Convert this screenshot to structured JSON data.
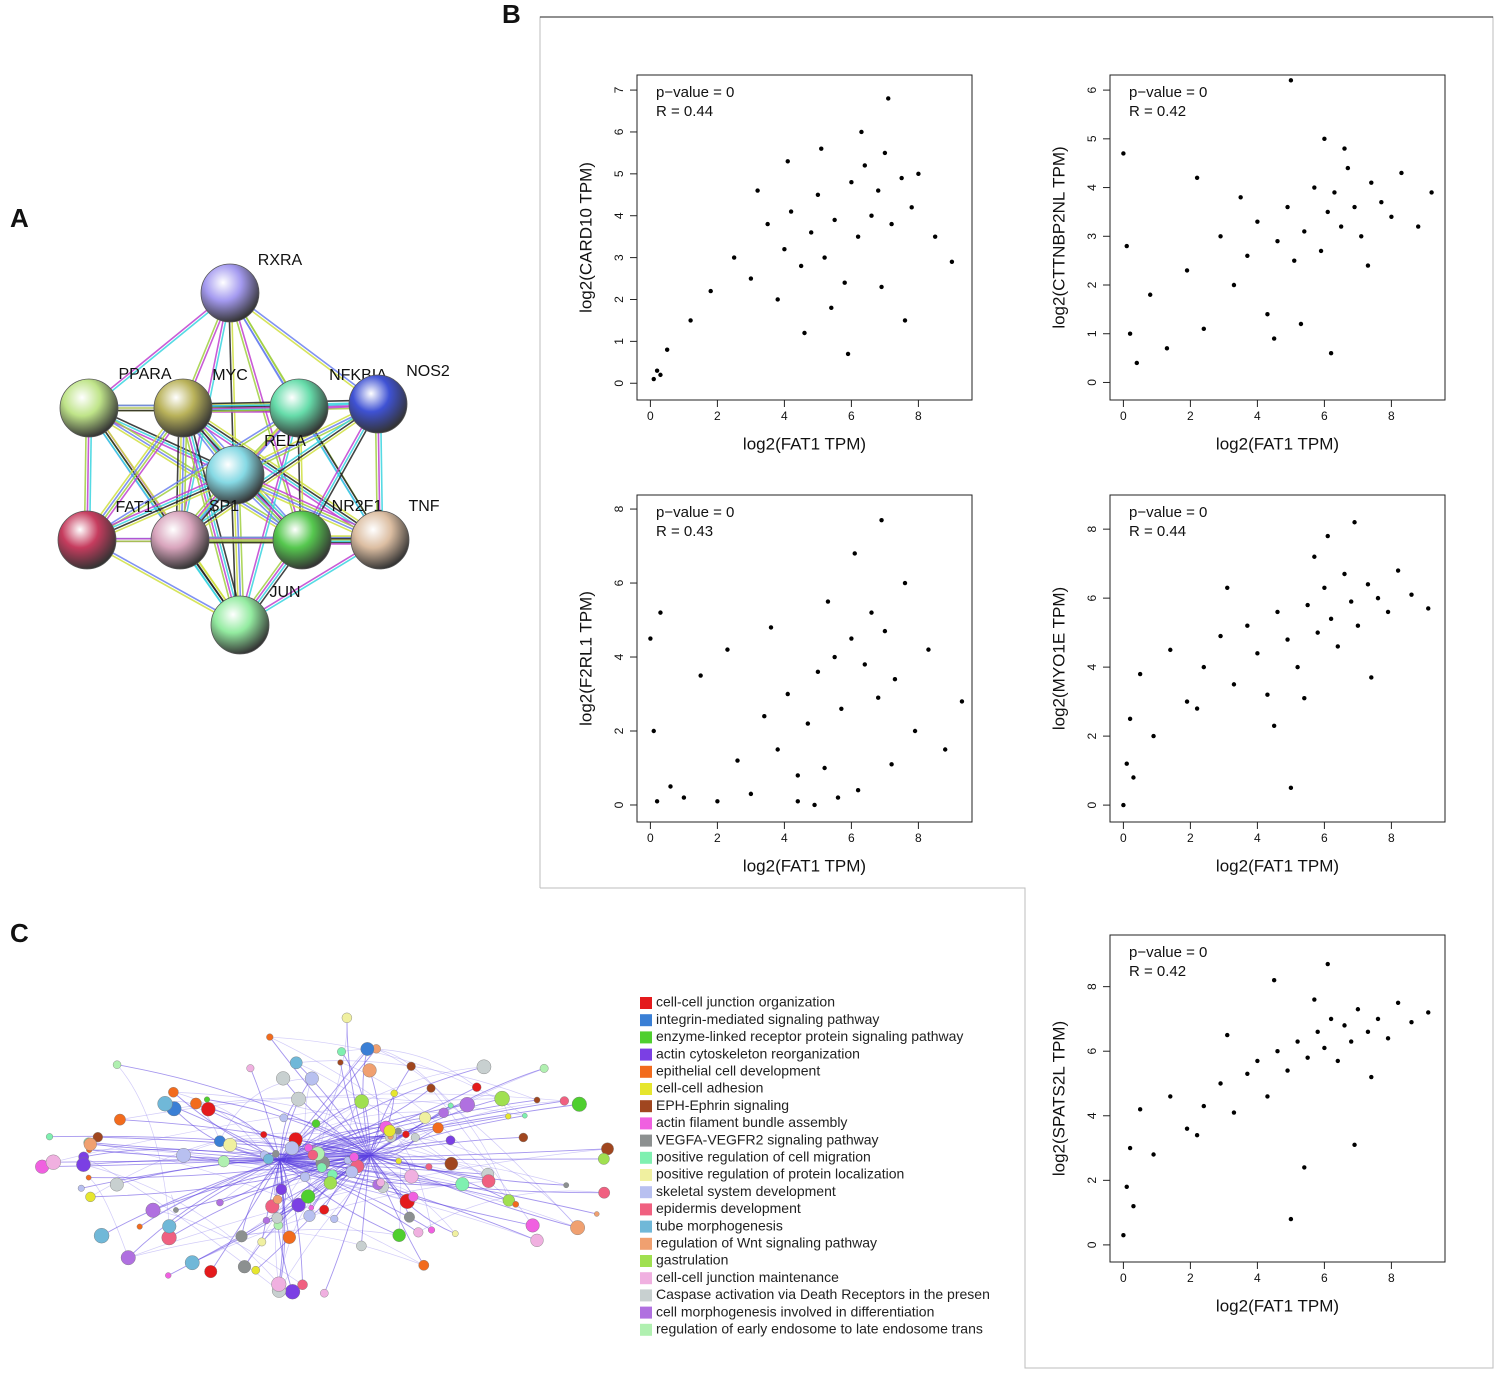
{
  "panel_labels": [
    "A",
    "B",
    "C"
  ],
  "network": {
    "nodes": [
      {
        "label": "RXRA",
        "color": "#a49af0"
      },
      {
        "label": "PPARA",
        "color": "#bfe489"
      },
      {
        "label": "MYC",
        "color": "#b9b25a"
      },
      {
        "label": "NFKBIA",
        "color": "#66dcaa"
      },
      {
        "label": "NOS2",
        "color": "#3f52d4"
      },
      {
        "label": "RELA",
        "color": "#86d9e4"
      },
      {
        "label": "FAT1",
        "color": "#c63c5e"
      },
      {
        "label": "SP1",
        "color": "#d9a5bd"
      },
      {
        "label": "NR2F1",
        "color": "#56c84f"
      },
      {
        "label": "TNF",
        "color": "#dcbea2"
      },
      {
        "label": "JUN",
        "color": "#93eba0"
      }
    ]
  },
  "legend": [
    {
      "label": "cell-cell junction organization",
      "color": "#e41a1c"
    },
    {
      "label": "integrin-mediated signaling pathway",
      "color": "#3a7fd5"
    },
    {
      "label": "enzyme-linked receptor protein signaling pathway",
      "color": "#4fcf2f"
    },
    {
      "label": "actin cytoskeleton reorganization",
      "color": "#7b3fe4"
    },
    {
      "label": "epithelial cell development",
      "color": "#f26b1d"
    },
    {
      "label": "cell-cell adhesion",
      "color": "#e6e62e"
    },
    {
      "label": "EPH-Ephrin signaling",
      "color": "#a0461f"
    },
    {
      "label": "actin filament bundle assembly",
      "color": "#f060e0"
    },
    {
      "label": "VEGFA-VEGFR2 signaling pathway",
      "color": "#8c9090"
    },
    {
      "label": "positive regulation of cell migration",
      "color": "#7ff0b0"
    },
    {
      "label": "positive regulation of protein localization",
      "color": "#f0f0a0"
    },
    {
      "label": "skeletal system development",
      "color": "#b8c0f0"
    },
    {
      "label": "epidermis development",
      "color": "#f06080"
    },
    {
      "label": "tube morphogenesis",
      "color": "#70b8d8"
    },
    {
      "label": "regulation of Wnt signaling pathway",
      "color": "#f0a070"
    },
    {
      "label": "gastrulation",
      "color": "#a0e050"
    },
    {
      "label": "cell-cell junction maintenance",
      "color": "#f0b0e0"
    },
    {
      "label": "Caspase activation via Death Receptors in the presen",
      "color": "#c8d0d0"
    },
    {
      "label": "cell morphogenesis involved in differentiation",
      "color": "#b070e0"
    },
    {
      "label": "regulation of early endosome to late endosome trans",
      "color": "#b0f0b0"
    }
  ],
  "chart_data": [
    {
      "type": "scatter",
      "annotations": [
        "p−value = 0",
        "R = 0.44"
      ],
      "xlabel": "log2(FAT1 TPM)",
      "ylabel": "log2(CARD10 TPM)",
      "color": "#000000",
      "x": [
        0.1,
        0.2,
        0.3,
        0.5,
        1.2,
        1.8,
        2.5,
        3.0,
        3.5,
        3.8,
        4.0,
        4.2,
        4.5,
        4.8,
        5.0,
        5.2,
        5.5,
        5.8,
        6.0,
        6.2,
        6.4,
        6.6,
        6.8,
        7.0,
        7.2,
        7.5,
        7.8,
        8.0,
        8.5,
        9.0,
        4.6,
        5.4,
        6.3,
        7.1,
        3.2,
        5.9,
        6.9,
        4.1,
        5.1,
        7.6
      ],
      "y": [
        0.1,
        0.3,
        0.2,
        0.8,
        1.5,
        2.2,
        3.0,
        2.5,
        3.8,
        2.0,
        3.2,
        4.1,
        2.8,
        3.6,
        4.5,
        3.0,
        3.9,
        2.4,
        4.8,
        3.5,
        5.2,
        4.0,
        4.6,
        5.5,
        3.8,
        4.9,
        4.2,
        5.0,
        3.5,
        2.9,
        1.2,
        1.8,
        6.0,
        6.8,
        4.6,
        0.7,
        2.3,
        5.3,
        5.6,
        1.5
      ],
      "xlim": [
        -0.4,
        9.6
      ],
      "ylim": [
        -0.4,
        7.36
      ],
      "xticks": [
        0,
        2,
        4,
        6,
        8
      ],
      "yticks": [
        0,
        1,
        2,
        3,
        4,
        5,
        6,
        7
      ]
    },
    {
      "type": "scatter",
      "annotations": [
        "p−value = 0",
        "R = 0.42"
      ],
      "xlabel": "log2(FAT1 TPM)",
      "ylabel": "log2(CTTNBP2NL TPM)",
      "color": "#000000",
      "x": [
        0.0,
        0.1,
        0.2,
        0.4,
        0.8,
        1.3,
        1.9,
        2.4,
        2.9,
        3.3,
        3.7,
        4.0,
        4.3,
        4.6,
        4.9,
        5.1,
        5.4,
        5.7,
        5.9,
        6.1,
        6.3,
        6.5,
        6.7,
        6.9,
        7.1,
        7.4,
        7.7,
        8.0,
        8.3,
        8.8,
        9.2,
        4.5,
        5.3,
        6.0,
        6.6,
        3.5,
        5.0,
        7.3,
        2.2,
        6.2
      ],
      "y": [
        4.7,
        2.8,
        1.0,
        0.4,
        1.8,
        0.7,
        2.3,
        1.1,
        3.0,
        2.0,
        2.6,
        3.3,
        1.4,
        2.9,
        3.6,
        2.5,
        3.1,
        4.0,
        2.7,
        3.5,
        3.9,
        3.2,
        4.4,
        3.6,
        3.0,
        4.1,
        3.7,
        3.4,
        4.3,
        3.2,
        3.9,
        0.9,
        1.2,
        5.0,
        4.8,
        3.8,
        6.2,
        2.4,
        4.2,
        0.6
      ],
      "xlim": [
        -0.4,
        9.6
      ],
      "ylim": [
        -0.36,
        6.31
      ],
      "xticks": [
        0,
        2,
        4,
        6,
        8
      ],
      "yticks": [
        0,
        1,
        2,
        3,
        4,
        5,
        6
      ]
    },
    {
      "type": "scatter",
      "annotations": [
        "p−value = 0",
        "R = 0.43"
      ],
      "xlabel": "log2(FAT1 TPM)",
      "ylabel": "log2(F2RL1 TPM)",
      "color": "#000000",
      "x": [
        0.0,
        0.1,
        0.2,
        0.3,
        0.6,
        1.0,
        1.5,
        2.0,
        2.6,
        3.0,
        3.4,
        3.8,
        4.1,
        4.4,
        4.7,
        5.0,
        5.2,
        5.5,
        5.7,
        6.0,
        6.2,
        6.4,
        6.6,
        6.8,
        7.0,
        7.3,
        7.6,
        7.9,
        8.3,
        8.8,
        9.3,
        4.9,
        5.6,
        6.1,
        3.6,
        2.3,
        6.9,
        5.3,
        7.2,
        4.4
      ],
      "y": [
        4.5,
        2.0,
        0.1,
        5.2,
        0.5,
        0.2,
        3.5,
        0.1,
        1.2,
        0.3,
        2.4,
        1.5,
        3.0,
        0.8,
        2.2,
        3.6,
        1.0,
        4.0,
        2.6,
        4.5,
        0.4,
        3.8,
        5.2,
        2.9,
        4.7,
        3.4,
        6.0,
        2.0,
        4.2,
        1.5,
        2.8,
        0.0,
        0.2,
        6.8,
        4.8,
        4.2,
        7.7,
        5.5,
        1.1,
        0.1
      ],
      "xlim": [
        -0.4,
        9.6
      ],
      "ylim": [
        -0.46,
        8.38
      ],
      "xticks": [
        0,
        2,
        4,
        6,
        8
      ],
      "yticks": [
        0,
        2,
        4,
        6,
        8
      ]
    },
    {
      "type": "scatter",
      "annotations": [
        "p−value = 0",
        "R = 0.44"
      ],
      "xlabel": "log2(FAT1 TPM)",
      "ylabel": "log2(MYO1E TPM)",
      "color": "#000000",
      "x": [
        0.0,
        0.1,
        0.2,
        0.3,
        0.5,
        0.9,
        1.4,
        1.9,
        2.4,
        2.9,
        3.3,
        3.7,
        4.0,
        4.3,
        4.6,
        4.9,
        5.2,
        5.5,
        5.8,
        6.0,
        6.2,
        6.4,
        6.6,
        6.8,
        7.0,
        7.3,
        7.6,
        7.9,
        8.2,
        8.6,
        9.1,
        4.5,
        5.4,
        6.1,
        6.9,
        3.1,
        5.0,
        7.4,
        2.2,
        5.7
      ],
      "y": [
        0.0,
        1.2,
        2.5,
        0.8,
        3.8,
        2.0,
        4.5,
        3.0,
        4.0,
        4.9,
        3.5,
        5.2,
        4.4,
        3.2,
        5.6,
        4.8,
        4.0,
        5.8,
        5.0,
        6.3,
        5.4,
        4.6,
        6.7,
        5.9,
        5.2,
        6.4,
        6.0,
        5.6,
        6.8,
        6.1,
        5.7,
        2.3,
        3.1,
        7.8,
        8.2,
        6.3,
        0.5,
        3.7,
        2.8,
        7.2
      ],
      "xlim": [
        -0.4,
        9.6
      ],
      "ylim": [
        -0.49,
        8.99
      ],
      "xticks": [
        0,
        2,
        4,
        6,
        8
      ],
      "yticks": [
        0,
        2,
        4,
        6,
        8
      ]
    },
    {
      "type": "scatter",
      "annotations": [
        "p−value = 0",
        "R = 0.42"
      ],
      "xlabel": "log2(FAT1 TPM)",
      "ylabel": "log2(SPATS2L TPM)",
      "color": "#000000",
      "x": [
        0.0,
        0.1,
        0.2,
        0.3,
        0.5,
        0.9,
        1.4,
        1.9,
        2.4,
        2.9,
        3.3,
        3.7,
        4.0,
        4.3,
        4.6,
        4.9,
        5.2,
        5.5,
        5.8,
        6.0,
        6.2,
        6.4,
        6.6,
        6.8,
        7.0,
        7.3,
        7.6,
        7.9,
        8.2,
        8.6,
        9.1,
        4.5,
        5.4,
        6.1,
        6.9,
        3.1,
        5.0,
        7.4,
        2.2,
        5.7
      ],
      "y": [
        0.3,
        1.8,
        3.0,
        1.2,
        4.2,
        2.8,
        4.6,
        3.6,
        4.3,
        5.0,
        4.1,
        5.3,
        5.7,
        4.6,
        6.0,
        5.4,
        6.3,
        5.8,
        6.6,
        6.1,
        7.0,
        5.7,
        6.8,
        6.3,
        7.3,
        6.6,
        7.0,
        6.4,
        7.5,
        6.9,
        7.2,
        8.2,
        2.4,
        8.7,
        3.1,
        6.5,
        0.8,
        5.2,
        3.4,
        7.6
      ],
      "xlim": [
        -0.4,
        9.6
      ],
      "ylim": [
        -0.53,
        9.6
      ],
      "xticks": [
        0,
        2,
        4,
        6,
        8
      ],
      "yticks": [
        0,
        2,
        4,
        6,
        8
      ]
    }
  ]
}
